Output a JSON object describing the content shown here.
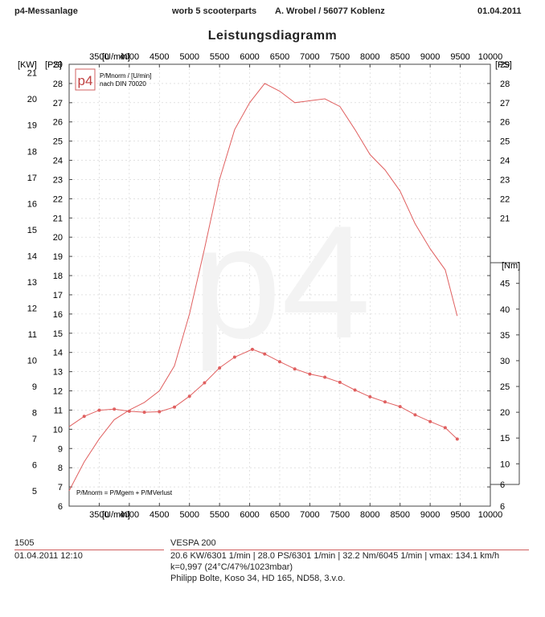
{
  "header": {
    "left": "p4-Messanlage",
    "center": "worb 5 scooterparts",
    "center2": "A. Wrobel / 56077 Koblenz",
    "date": "01.04.2011"
  },
  "legend": {
    "logo_text": "p4",
    "line1": "P/Mnorm / [U/min]",
    "line2": "nach DIN 70020",
    "formula": "P/Mnorm = P/Mgem + P/MVerlust"
  },
  "footer": {
    "run_id": "1505",
    "run_datetime": "01.04.2011  12:10",
    "vehicle": "VESPA 200",
    "summary": "20.6 KW/6301 1/min  |  28.0 PS/6301 1/min  |  32.2 Nm/6045 1/min | vmax: 134.1 km/h",
    "conditions": "k=0,997 (24°C/47%/1023mbar)",
    "setup": "Philipp Bolte, Koso 34, HD 165, ND58, 3.v.o."
  },
  "colors": {
    "curve": "#e06060",
    "axis": "#444444",
    "grid": "#d0d0d0"
  },
  "chart_data": {
    "type": "line",
    "title": "Leistungsdiagramm",
    "x_unit_label": "[U/min]",
    "left_kw_label": "[KW]",
    "left_ps_label": "[PS]",
    "right_ps_label": "[PS]",
    "right_nm_label": "[Nm]",
    "xlim": [
      3000,
      10000
    ],
    "x_ticks": [
      3500,
      4000,
      4500,
      5000,
      5500,
      6000,
      6500,
      7000,
      7500,
      8000,
      8500,
      9000,
      9500,
      10000
    ],
    "ps_lim": [
      6,
      29
    ],
    "ps_ticks": [
      6,
      7,
      8,
      9,
      10,
      11,
      12,
      13,
      14,
      15,
      16,
      17,
      18,
      19,
      20,
      21,
      22,
      23,
      24,
      25,
      26,
      27,
      28,
      29
    ],
    "kw_ticks": [
      5,
      6,
      7,
      8,
      9,
      10,
      11,
      12,
      13,
      14,
      15,
      16,
      17,
      18,
      19,
      20,
      21
    ],
    "nm_lim": [
      6,
      49
    ],
    "nm_ticks": [
      6,
      10,
      15,
      20,
      25,
      30,
      35,
      40,
      45
    ],
    "grid": true,
    "series": [
      {
        "axis": "ps",
        "markers": false,
        "x": [
          3000,
          3250,
          3500,
          3750,
          4000,
          4250,
          4500,
          4750,
          5000,
          5250,
          5500,
          5750,
          6000,
          6250,
          6500,
          6750,
          7000,
          7250,
          7500,
          7750,
          8000,
          8250,
          8500,
          8750,
          9000,
          9250,
          9450
        ],
        "values": [
          6.8,
          8.3,
          9.5,
          10.5,
          11.0,
          11.4,
          12.0,
          13.3,
          16.0,
          19.4,
          23.0,
          25.6,
          27.0,
          28.0,
          27.6,
          27.0,
          27.1,
          27.2,
          26.8,
          25.6,
          24.3,
          23.5,
          22.4,
          20.7,
          19.4,
          18.3,
          15.9
        ]
      },
      {
        "axis": "nm",
        "markers": true,
        "x": [
          3000,
          3250,
          3500,
          3750,
          4000,
          4250,
          4500,
          4750,
          5000,
          5250,
          5500,
          5750,
          6045,
          6250,
          6500,
          6750,
          7000,
          7250,
          7500,
          7750,
          8000,
          8250,
          8500,
          8750,
          9000,
          9250,
          9450
        ],
        "values": [
          17.2,
          19.2,
          20.4,
          20.6,
          20.2,
          20.0,
          20.1,
          21.0,
          23.1,
          25.7,
          28.6,
          30.7,
          32.2,
          31.3,
          29.8,
          28.4,
          27.4,
          26.8,
          25.8,
          24.3,
          23.0,
          22.0,
          21.1,
          19.5,
          18.2,
          17.0,
          14.8
        ]
      }
    ]
  }
}
